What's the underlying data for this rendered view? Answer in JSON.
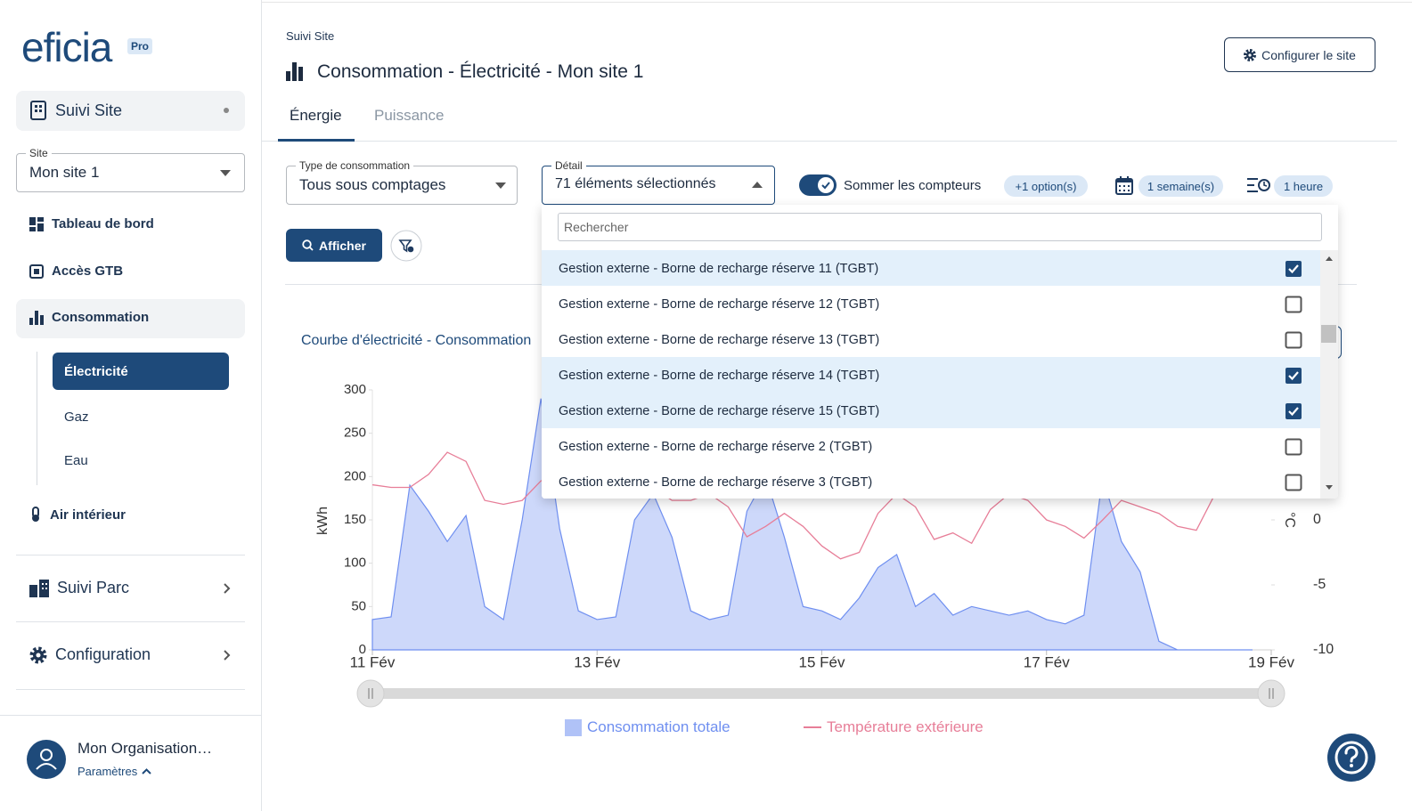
{
  "sidebar": {
    "logo": "eficia",
    "logo_badge": "Pro",
    "section": "Suivi Site",
    "site_label": "Site",
    "site_value": "Mon site 1",
    "nav": [
      "Tableau de bord",
      "Accès GTB",
      "Consommation"
    ],
    "sub_nav": [
      "Électricité",
      "Gaz",
      "Eau"
    ],
    "nav_more": "Air intérieur",
    "groups": [
      "Suivi Parc",
      "Configuration"
    ],
    "user": {
      "name": "Mon Organisation…",
      "link": "Paramètres"
    }
  },
  "header": {
    "breadcrumb": "Suivi Site",
    "title": "Consommation - Électricité - Mon site 1",
    "button": "Configurer le site"
  },
  "tabs": [
    "Énergie",
    "Puissance"
  ],
  "filters": {
    "type_label": "Type de consommation",
    "type_value": "Tous sous comptages",
    "detail_label": "Détail",
    "detail_value": "71 éléments sélectionnés",
    "sum_toggle": "Sommer les compteurs",
    "options_chip": "+1 option(s)",
    "period_chip": "1 semaine(s)",
    "step_chip": "1 heure",
    "show_button": "Afficher"
  },
  "dropdown": {
    "search_placeholder": "Rechercher",
    "items": [
      {
        "label": "Gestion externe - Borne de recharge réserve 11 (TGBT)",
        "checked": true
      },
      {
        "label": "Gestion externe - Borne de recharge réserve 12 (TGBT)",
        "checked": false
      },
      {
        "label": "Gestion externe - Borne de recharge réserve 13 (TGBT)",
        "checked": false
      },
      {
        "label": "Gestion externe - Borne de recharge réserve 14 (TGBT)",
        "checked": true
      },
      {
        "label": "Gestion externe - Borne de recharge réserve 15 (TGBT)",
        "checked": true
      },
      {
        "label": "Gestion externe - Borne de recharge réserve 2 (TGBT)",
        "checked": false
      },
      {
        "label": "Gestion externe - Borne de recharge réserve 3 (TGBT)",
        "checked": false
      }
    ]
  },
  "chart_data": {
    "type": "line",
    "title": "Courbe d'électricité - Consommation",
    "y_label": "kWh",
    "y2_label": "°C",
    "x": [
      0,
      4,
      8,
      12,
      16,
      20,
      24,
      28,
      32,
      36,
      40,
      44,
      48,
      52,
      56,
      60,
      64,
      68,
      72,
      76,
      80,
      84,
      88,
      92,
      96,
      100,
      104,
      108,
      112,
      116,
      120,
      124,
      128,
      132,
      136,
      140,
      144,
      148,
      152,
      156,
      160,
      164,
      168,
      172,
      176,
      180,
      184,
      188
    ],
    "xlim": [
      0,
      192
    ],
    "xticks": [
      {
        "value": 0,
        "label": "11 Fév"
      },
      {
        "value": 48,
        "label": "13 Fév"
      },
      {
        "value": 96,
        "label": "15 Fév"
      },
      {
        "value": 144,
        "label": "17 Fév"
      },
      {
        "value": 192,
        "label": "19 Fév"
      }
    ],
    "ylim": [
      0,
      300
    ],
    "yticks": [
      0,
      50,
      100,
      150,
      200,
      250,
      300
    ],
    "y2lim": [
      -10,
      10
    ],
    "y2ticks": [
      -10,
      -5,
      0
    ],
    "grid": false,
    "series": [
      {
        "name": "Consommation totale",
        "type": "area",
        "color": "#6f8ff0",
        "values": [
          35,
          38,
          190,
          160,
          125,
          155,
          50,
          35,
          150,
          290,
          140,
          45,
          35,
          38,
          150,
          180,
          130,
          45,
          35,
          40,
          160,
          200,
          130,
          50,
          45,
          35,
          60,
          95,
          110,
          50,
          65,
          40,
          50,
          45,
          40,
          45,
          35,
          30,
          40,
          200,
          125,
          90,
          10,
          0,
          0,
          0,
          0,
          0
        ]
      },
      {
        "name": "Température extérieure",
        "type": "line",
        "axis": "y2",
        "color": "#e77e98",
        "values": [
          2.7,
          2.5,
          2.5,
          3.5,
          5.2,
          4.5,
          1.5,
          1.2,
          1.5,
          3,
          3.5,
          2.5,
          2,
          2.5,
          3,
          2.5,
          1.5,
          1.5,
          2,
          1,
          -1.3,
          -0.5,
          0.5,
          -0.5,
          -2,
          -3,
          -2.5,
          0.5,
          2,
          1,
          -1.5,
          -1,
          -1.8,
          0.8,
          2,
          1.5,
          0,
          -0.5,
          -1.4,
          0,
          1.5,
          1,
          0.5,
          -0.5,
          -0.8,
          2,
          null,
          null
        ]
      }
    ]
  }
}
